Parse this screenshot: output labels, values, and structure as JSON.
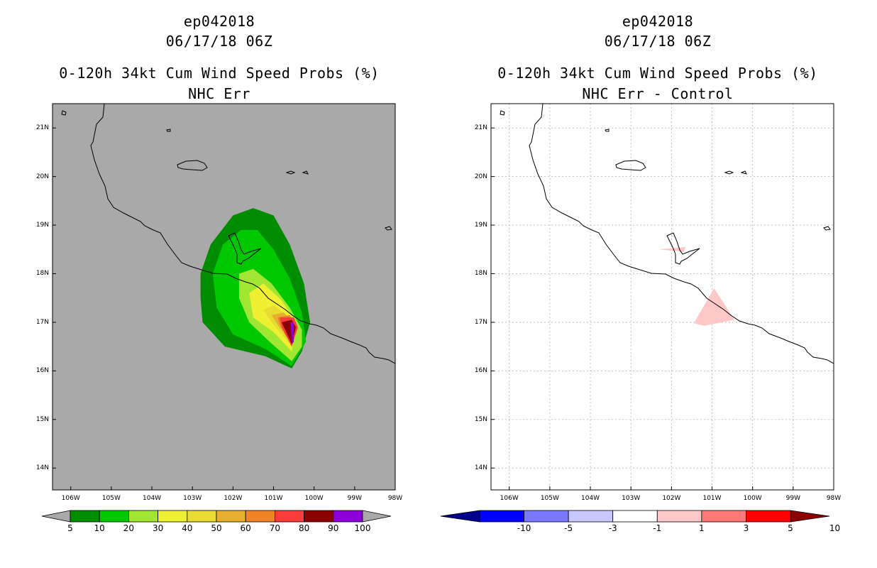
{
  "panels": [
    {
      "id": "left",
      "storm": "ep042018",
      "datetime": "06/17/18 06Z",
      "title": "0-120h 34kt Cum Wind Speed Probs (%)",
      "subtitle": "NHC Err",
      "background": "#a9a9a9"
    },
    {
      "id": "right",
      "storm": "ep042018",
      "datetime": "06/17/18 06Z",
      "title": "0-120h 34kt Cum Wind Speed Probs (%)",
      "subtitle": "NHC Err - Control",
      "background": "#ffffff"
    }
  ],
  "axes": {
    "x_ticks": [
      "106W",
      "105W",
      "104W",
      "103W",
      "102W",
      "101W",
      "100W",
      "99W",
      "98W"
    ],
    "x_values": [
      -106,
      -105,
      -104,
      -103,
      -102,
      -101,
      -100,
      -99,
      -98
    ],
    "y_ticks": [
      "21N",
      "20N",
      "19N",
      "18N",
      "17N",
      "16N",
      "15N",
      "14N"
    ],
    "y_values": [
      21,
      20,
      19,
      18,
      17,
      16,
      15,
      14
    ],
    "xlim": [
      -106.45,
      -98
    ],
    "ylim": [
      13.55,
      21.5
    ]
  },
  "colorbars": {
    "left": {
      "labels": [
        "5",
        "10",
        "20",
        "30",
        "40",
        "50",
        "60",
        "70",
        "80",
        "90",
        "100"
      ],
      "colors": [
        "#008c00",
        "#00c800",
        "#a0e632",
        "#f0f032",
        "#e6dc32",
        "#e6af2d",
        "#f08228",
        "#fa3c3c",
        "#8c0000",
        "#8c00dc"
      ],
      "end_colors": [
        "#a9a9a9",
        "#a9a9a9"
      ]
    },
    "right": {
      "labels": [
        "-10",
        "-5",
        "-3",
        "-1",
        "1",
        "3",
        "5",
        "10"
      ],
      "colors": [
        "#0000ff",
        "#7878ff",
        "#c8c8ff",
        "#ffffff",
        "#ffc8c8",
        "#ff7878",
        "#ff0000"
      ],
      "end_colors": [
        "#00008c",
        "#8c0000"
      ]
    }
  },
  "chart_data": [
    {
      "type": "heatmap",
      "title": "0-120h 34kt Cum Wind Speed Probs (%)",
      "subtitle": "NHC Err",
      "units": "%",
      "contour_levels": [
        5,
        10,
        20,
        30,
        40,
        50,
        60,
        70,
        80,
        90,
        100
      ],
      "filled_regions": [
        {
          "level": 5,
          "color": "#008c00",
          "lonlat": [
            [
              -100.55,
              16.05
            ],
            [
              -101.2,
              16.3
            ],
            [
              -102.2,
              16.5
            ],
            [
              -102.75,
              17.0
            ],
            [
              -102.8,
              17.5
            ],
            [
              -102.8,
              18.0
            ],
            [
              -102.55,
              18.6
            ],
            [
              -102.0,
              19.2
            ],
            [
              -101.5,
              19.35
            ],
            [
              -101.0,
              19.2
            ],
            [
              -100.6,
              18.6
            ],
            [
              -100.25,
              17.8
            ],
            [
              -100.1,
              17.0
            ],
            [
              -100.3,
              16.4
            ]
          ]
        },
        {
          "level": 10,
          "color": "#00c800",
          "lonlat": [
            [
              -100.55,
              16.1
            ],
            [
              -101.2,
              16.45
            ],
            [
              -102.0,
              16.75
            ],
            [
              -102.4,
              17.3
            ],
            [
              -102.5,
              18.0
            ],
            [
              -102.25,
              18.6
            ],
            [
              -101.8,
              18.9
            ],
            [
              -101.4,
              18.9
            ],
            [
              -101.0,
              18.5
            ],
            [
              -100.6,
              17.9
            ],
            [
              -100.3,
              17.2
            ],
            [
              -100.2,
              16.6
            ]
          ]
        },
        {
          "level": 20,
          "color": "#a0e632",
          "lonlat": [
            [
              -100.55,
              16.2
            ],
            [
              -101.1,
              16.6
            ],
            [
              -101.6,
              17.0
            ],
            [
              -101.85,
              17.5
            ],
            [
              -101.85,
              18.0
            ],
            [
              -101.5,
              18.1
            ],
            [
              -101.05,
              17.8
            ],
            [
              -100.6,
              17.3
            ],
            [
              -100.3,
              16.85
            ],
            [
              -100.3,
              16.5
            ]
          ]
        },
        {
          "level": 30,
          "color": "#f0f032",
          "lonlat": [
            [
              -100.55,
              16.4
            ],
            [
              -101.0,
              16.8
            ],
            [
              -101.5,
              17.1
            ],
            [
              -101.6,
              17.6
            ],
            [
              -101.25,
              17.8
            ],
            [
              -100.8,
              17.45
            ],
            [
              -100.45,
              17.0
            ]
          ]
        },
        {
          "level": 40,
          "color": "#e6dc32",
          "lonlat": [
            [
              -100.55,
              16.5
            ],
            [
              -101.0,
              16.95
            ],
            [
              -101.25,
              17.25
            ],
            [
              -101.0,
              17.35
            ],
            [
              -100.6,
              17.1
            ],
            [
              -100.45,
              16.85
            ]
          ]
        },
        {
          "level": 50,
          "color": "#e6af2d",
          "lonlat": [
            [
              -100.55,
              16.55
            ],
            [
              -100.9,
              16.95
            ],
            [
              -101.05,
              17.15
            ],
            [
              -100.75,
              17.2
            ],
            [
              -100.45,
              16.95
            ]
          ]
        },
        {
          "level": 60,
          "color": "#f08228",
          "lonlat": [
            [
              -100.55,
              16.55
            ],
            [
              -100.85,
              16.95
            ],
            [
              -100.9,
              17.1
            ],
            [
              -100.6,
              17.15
            ],
            [
              -100.45,
              16.95
            ]
          ]
        },
        {
          "level": 70,
          "color": "#fa3c3c",
          "lonlat": [
            [
              -100.55,
              16.5
            ],
            [
              -100.8,
              16.9
            ],
            [
              -100.85,
              17.1
            ],
            [
              -100.5,
              17.1
            ],
            [
              -100.4,
              16.9
            ]
          ]
        },
        {
          "level": 80,
          "color": "#8c0000",
          "lonlat": [
            [
              -100.55,
              16.55
            ],
            [
              -100.8,
              17.0
            ],
            [
              -100.55,
              17.05
            ],
            [
              -100.45,
              16.9
            ]
          ]
        },
        {
          "level": 90,
          "color": "#8c00dc",
          "lonlat": [
            [
              -100.55,
              16.55
            ],
            [
              -100.58,
              17.0
            ],
            [
              -100.5,
              17.0
            ],
            [
              -100.5,
              16.6
            ]
          ]
        }
      ]
    },
    {
      "type": "heatmap",
      "title": "0-120h 34kt Cum Wind Speed Probs (%)",
      "subtitle": "NHC Err - Control",
      "units": "%",
      "contour_levels": [
        -10,
        -5,
        -3,
        -1,
        1,
        3,
        5,
        10
      ],
      "filled_regions": [
        {
          "level": 1,
          "color": "#ffc8c8",
          "lonlat": [
            [
              -102.3,
              18.5
            ],
            [
              -101.65,
              18.55
            ],
            [
              -101.7,
              18.45
            ]
          ]
        },
        {
          "level": 1,
          "color": "#ffc8c8",
          "lonlat": [
            [
              -101.45,
              16.98
            ],
            [
              -100.95,
              17.7
            ],
            [
              -100.45,
              17.05
            ],
            [
              -101.2,
              16.93
            ]
          ]
        }
      ]
    }
  ]
}
